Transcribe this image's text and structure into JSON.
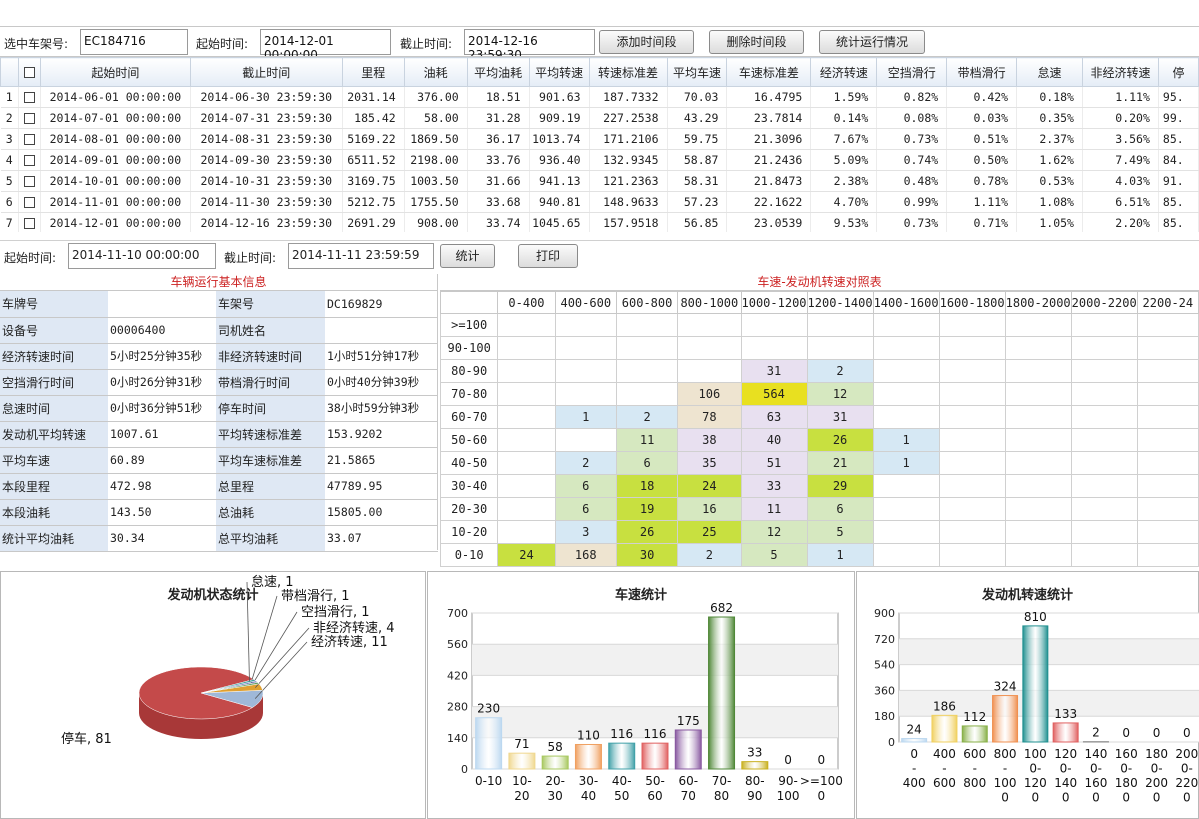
{
  "toolbar": {
    "chassis_label": "选中车架号:",
    "chassis_value": "EC184716",
    "start_label": "起始时间:",
    "start_value": "2014-12-01 00:00:00",
    "end_label": "截止时间:",
    "end_value": "2014-12-16 23:59:30",
    "add_button": "添加时间段",
    "delete_button": "删除时间段",
    "stats_button": "统计运行情况"
  },
  "grid": {
    "headers": [
      "起始时间",
      "截止时间",
      "里程",
      "油耗",
      "平均油耗",
      "平均转速",
      "转速标准差",
      "平均车速",
      "车速标准差",
      "经济转速",
      "空挡滑行",
      "带档滑行",
      "怠速",
      "非经济转速",
      "停"
    ],
    "rows": [
      [
        "1",
        "2014-06-01  00:00:00",
        "2014-06-30  23:59:30",
        "2031.14",
        "376.00",
        "18.51",
        "901.63",
        "187.7332",
        "70.03",
        "16.4795",
        "1.59%",
        "0.82%",
        "0.42%",
        "0.18%",
        "1.11%",
        "95."
      ],
      [
        "2",
        "2014-07-01  00:00:00",
        "2014-07-31  23:59:30",
        "185.42",
        "58.00",
        "31.28",
        "909.19",
        "227.2538",
        "43.29",
        "23.7814",
        "0.14%",
        "0.08%",
        "0.03%",
        "0.35%",
        "0.20%",
        "99."
      ],
      [
        "3",
        "2014-08-01  00:00:00",
        "2014-08-31  23:59:30",
        "5169.22",
        "1869.50",
        "36.17",
        "1013.74",
        "171.2106",
        "59.75",
        "21.3096",
        "7.67%",
        "0.73%",
        "0.51%",
        "2.37%",
        "3.56%",
        "85."
      ],
      [
        "4",
        "2014-09-01  00:00:00",
        "2014-09-30  23:59:30",
        "6511.52",
        "2198.00",
        "33.76",
        "936.40",
        "132.9345",
        "58.87",
        "21.2436",
        "5.09%",
        "0.74%",
        "0.50%",
        "1.62%",
        "7.49%",
        "84."
      ],
      [
        "5",
        "2014-10-01  00:00:00",
        "2014-10-31  23:59:30",
        "3169.75",
        "1003.50",
        "31.66",
        "941.13",
        "121.2363",
        "58.31",
        "21.8473",
        "2.38%",
        "0.48%",
        "0.78%",
        "0.53%",
        "4.03%",
        "91."
      ],
      [
        "6",
        "2014-11-01  00:00:00",
        "2014-11-30  23:59:30",
        "5212.75",
        "1755.50",
        "33.68",
        "940.81",
        "148.9633",
        "57.23",
        "22.1622",
        "4.70%",
        "0.99%",
        "1.11%",
        "1.08%",
        "6.51%",
        "85."
      ],
      [
        "7",
        "2014-12-01  00:00:00",
        "2014-12-16  23:59:30",
        "2691.29",
        "908.00",
        "33.74",
        "1045.65",
        "157.9518",
        "56.85",
        "23.0539",
        "9.53%",
        "0.73%",
        "0.71%",
        "1.05%",
        "2.20%",
        "85."
      ]
    ]
  },
  "filter2": {
    "start_label": "起始时间:",
    "start_value": "2014-11-10 00:00:00",
    "end_label": "截止时间:",
    "end_value": "2014-11-11 23:59:59",
    "stat_button": "统计",
    "print_button": "打印"
  },
  "info": {
    "title": "车辆运行基本信息",
    "rows": [
      [
        "车牌号",
        "",
        "车架号",
        "DC169829"
      ],
      [
        "设备号",
        "00006400",
        "司机姓名",
        ""
      ],
      [
        "经济转速时间",
        "5小时25分钟35秒",
        "非经济转速时间",
        "1小时51分钟17秒"
      ],
      [
        "空挡滑行时间",
        "0小时26分钟31秒",
        "带档滑行时间",
        "0小时40分钟39秒"
      ],
      [
        "怠速时间",
        "0小时36分钟51秒",
        "停车时间",
        "38小时59分钟3秒"
      ],
      [
        "发动机平均转速",
        "1007.61",
        "平均转速标准差",
        "153.9202"
      ],
      [
        "平均车速",
        "60.89",
        "平均车速标准差",
        "21.5865"
      ],
      [
        "本段里程",
        "472.98",
        "总里程",
        "47789.95"
      ],
      [
        "本段油耗",
        "143.50",
        "总油耗",
        "15805.00"
      ],
      [
        "统计平均油耗",
        "30.34",
        "总平均油耗",
        "33.07"
      ]
    ]
  },
  "matrix": {
    "title": "车速-发动机转速对照表",
    "col_headers": [
      "0-400",
      "400-600",
      "600-800",
      "800-1000",
      "1000-1200",
      "1200-1400",
      "1400-1600",
      "1600-1800",
      "1800-2000",
      "2000-2200",
      "2200-24"
    ],
    "row_headers": [
      ">=100",
      "90-100",
      "80-90",
      "70-80",
      "60-70",
      "50-60",
      "40-50",
      "30-40",
      "20-30",
      "10-20",
      "0-10"
    ],
    "cells": [
      [
        "",
        "",
        "",
        "",
        "",
        "",
        "",
        "",
        "",
        "",
        ""
      ],
      [
        "",
        "",
        "",
        "",
        "",
        "",
        "",
        "",
        "",
        "",
        ""
      ],
      [
        "",
        "",
        "",
        "",
        "31",
        "2",
        "",
        "",
        "",
        "",
        ""
      ],
      [
        "",
        "",
        "",
        "106",
        "564",
        "12",
        "",
        "",
        "",
        "",
        ""
      ],
      [
        "",
        "1",
        "2",
        "78",
        "63",
        "31",
        "",
        "",
        "",
        "",
        ""
      ],
      [
        "",
        "",
        "11",
        "38",
        "40",
        "26",
        "1",
        "",
        "",
        "",
        ""
      ],
      [
        "",
        "2",
        "6",
        "35",
        "51",
        "21",
        "1",
        "",
        "",
        "",
        ""
      ],
      [
        "",
        "6",
        "18",
        "24",
        "33",
        "29",
        "",
        "",
        "",
        "",
        ""
      ],
      [
        "",
        "6",
        "19",
        "16",
        "11",
        "6",
        "",
        "",
        "",
        "",
        ""
      ],
      [
        "",
        "3",
        "26",
        "25",
        "12",
        "5",
        "",
        "",
        "",
        "",
        ""
      ],
      [
        "24",
        "168",
        "30",
        "2",
        "5",
        "1",
        "",
        "",
        "",
        "",
        ""
      ]
    ],
    "colors": {
      "yellow": "#e8e020",
      "yellowgreen": "#c8e040",
      "green": "#d6e8c0",
      "beige": "#eee4d0",
      "lilac": "#e8e0f0",
      "blue": "#d6e8f4"
    }
  },
  "chart_data": [
    {
      "type": "pie",
      "title": "发动机状态统计",
      "labels": [
        "停车",
        "经济转速",
        "非经济转速",
        "空挡滑行",
        "带档滑行",
        "怠速"
      ],
      "values": [
        81,
        11,
        4,
        1,
        1,
        1
      ],
      "display_labels": [
        "停车, 81",
        "经济转速, 11",
        "非经济转速, 4",
        "空挡滑行, 1",
        "带档滑行, 1",
        "怠速, 1"
      ],
      "colors": [
        "#c44a4a",
        "#9fb8d8",
        "#e0a030",
        "#60a060",
        "#8080c0",
        "#40a0a0"
      ]
    },
    {
      "type": "bar",
      "title": "车速统计",
      "categories": [
        "0-10",
        "10-20",
        "20-30",
        "30-40",
        "40-50",
        "50-60",
        "60-70",
        "70-80",
        "80-90",
        "90-100",
        ">=100"
      ],
      "values": [
        230,
        71,
        58,
        110,
        116,
        116,
        175,
        682,
        33,
        0,
        0
      ],
      "ylim": [
        0,
        700
      ],
      "yticks": [
        0,
        140,
        280,
        420,
        560,
        700
      ],
      "colors": [
        "#bcd8f0",
        "#f0d890",
        "#a8c860",
        "#f0a060",
        "#40a0a8",
        "#e06060",
        "#8858a0",
        "#508838",
        "#c8b020",
        "#888888",
        "#888888"
      ]
    },
    {
      "type": "bar",
      "title": "发动机转速统计",
      "categories": [
        "0-400",
        "400-600",
        "600-800",
        "800-1000",
        "1000-1200",
        "1200-1400",
        "1400-1600",
        "1600-1800",
        "1800-2000",
        "2000-2200"
      ],
      "tick_lines": [
        [
          "0",
          "-",
          "400"
        ],
        [
          "400",
          "-",
          "600"
        ],
        [
          "600",
          "-",
          "800"
        ],
        [
          "800",
          "-",
          "100",
          "0"
        ],
        [
          "100",
          "0-",
          "120",
          "0"
        ],
        [
          "120",
          "0-",
          "140",
          "0"
        ],
        [
          "140",
          "0-",
          "160",
          "0"
        ],
        [
          "160",
          "0-",
          "180",
          "0"
        ],
        [
          "180",
          "0-",
          "200",
          "0"
        ],
        [
          "200",
          "0-",
          "220",
          "0"
        ]
      ],
      "values": [
        24,
        186,
        112,
        324,
        810,
        133,
        2,
        0,
        0,
        0
      ],
      "ylim": [
        0,
        900
      ],
      "yticks": [
        0,
        180,
        360,
        540,
        720,
        900
      ],
      "colors": [
        "#bcd8f0",
        "#f0d060",
        "#88b048",
        "#f09050",
        "#209090",
        "#e06060",
        "#888888",
        "#888888",
        "#888888",
        "#888888"
      ]
    }
  ]
}
